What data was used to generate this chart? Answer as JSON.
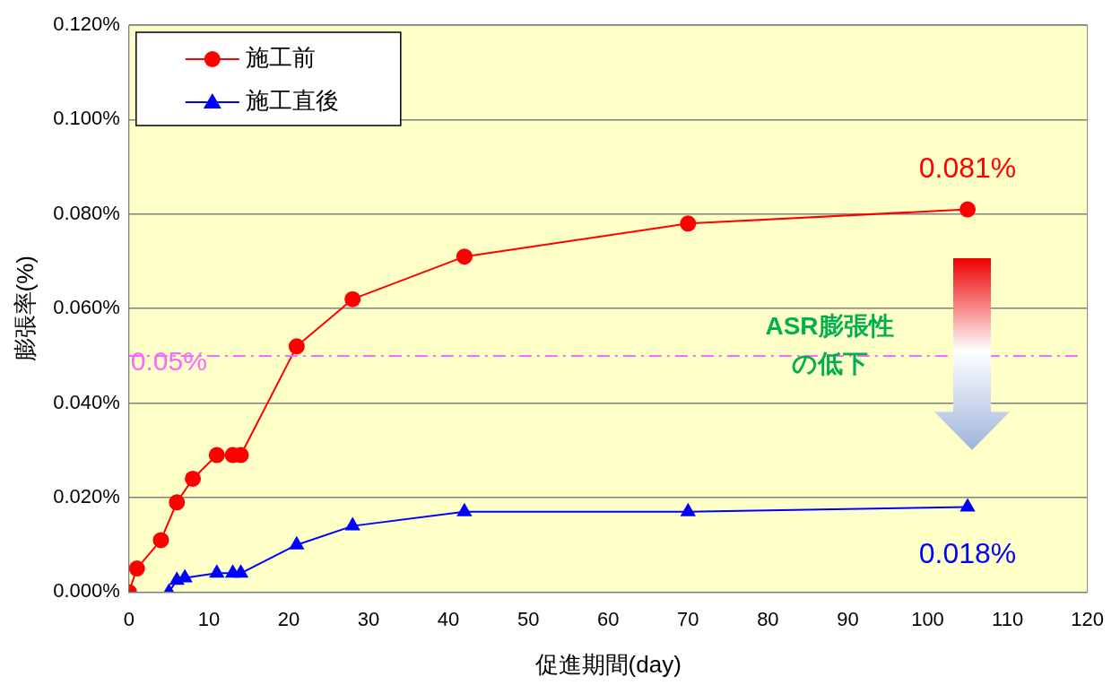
{
  "chart_data": {
    "type": "line",
    "xlabel": "促進期間(day)",
    "ylabel": "膨張率(%)",
    "xlim": [
      0,
      120
    ],
    "xticks": [
      0,
      10,
      20,
      30,
      40,
      50,
      60,
      70,
      80,
      90,
      100,
      110,
      120
    ],
    "ylim": [
      0,
      0.12
    ],
    "yticks": [
      {
        "value": 0,
        "label": "0.000%"
      },
      {
        "value": 0.02,
        "label": "0.020%"
      },
      {
        "value": 0.04,
        "label": "0.040%"
      },
      {
        "value": 0.06,
        "label": "0.060%"
      },
      {
        "value": 0.08,
        "label": "0.080%"
      },
      {
        "value": 0.1,
        "label": "0.100%"
      },
      {
        "value": 0.12,
        "label": "0.120%"
      }
    ],
    "grid": "y",
    "legend": "top left",
    "series": [
      {
        "name": "施工前",
        "color": "#ff0000",
        "marker": "circle",
        "x": [
          0,
          1,
          4,
          6,
          8,
          11,
          13,
          14,
          21,
          28,
          42,
          70,
          105
        ],
        "values": [
          0,
          0.005,
          0.011,
          0.019,
          0.024,
          0.029,
          0.029,
          0.029,
          0.052,
          0.062,
          0.071,
          0.078,
          0.081
        ]
      },
      {
        "name": "施工直後",
        "color": "#0000ff",
        "marker": "triangle",
        "x": [
          5,
          6,
          7,
          11,
          13,
          14,
          21,
          28,
          42,
          70,
          105
        ],
        "values": [
          0,
          0.0025,
          0.003,
          0.004,
          0.004,
          0.004,
          0.01,
          0.014,
          0.017,
          0.017,
          0.018
        ]
      }
    ],
    "ref_lines": [
      {
        "axis": "y",
        "value": 0.05,
        "label": "0.05%",
        "color": "#ff66ff",
        "line_style": "dashed"
      }
    ],
    "annotations": [
      {
        "text": "0.081%",
        "x": 105,
        "y": 0.081
      },
      {
        "text": "0.018%",
        "x": 105,
        "y": 0.018
      },
      "ASR膨張性",
      "の低下"
    ]
  }
}
